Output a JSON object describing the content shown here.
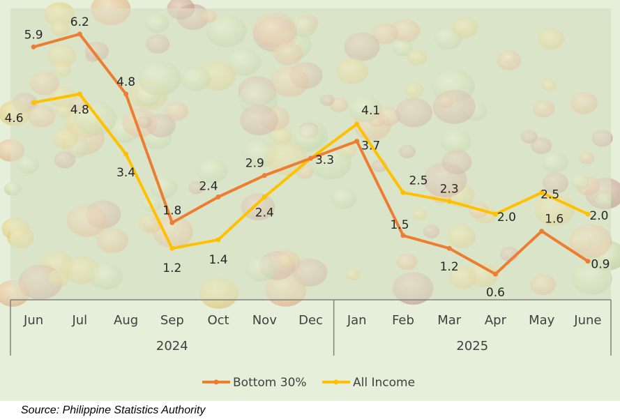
{
  "chart_data": {
    "type": "line",
    "categories": [
      "Jun",
      "Jul",
      "Aug",
      "Sep",
      "Oct",
      "Nov",
      "Dec",
      "Jan",
      "Feb",
      "Mar",
      "Apr",
      "May",
      "June"
    ],
    "year_groups": [
      {
        "label": "2024",
        "span": 7
      },
      {
        "label": "2025",
        "span": 6
      }
    ],
    "series": [
      {
        "name": "Bottom 30%",
        "color": "#ed7d31",
        "values": [
          5.9,
          6.2,
          4.8,
          1.8,
          2.4,
          2.9,
          3.3,
          3.7,
          1.5,
          1.2,
          0.6,
          1.6,
          0.9
        ],
        "labels": [
          "5.9",
          "6.2",
          "4.8",
          "1.8",
          "2.4",
          "2.9",
          "3.3",
          "3.7",
          "1.5",
          "1.2",
          "0.6",
          "1.6",
          "0.9"
        ]
      },
      {
        "name": "All Income",
        "color": "#ffc000",
        "values": [
          4.6,
          4.8,
          3.4,
          1.2,
          1.4,
          2.4,
          3.3,
          4.1,
          2.5,
          2.3,
          2.0,
          2.5,
          2.0
        ],
        "labels": [
          "4.6",
          "4.8",
          "3.4",
          "1.2",
          "1.4",
          "2.4",
          "",
          "4.1",
          "2.5",
          "2.3",
          "2.0",
          "2.5",
          "2.0"
        ]
      }
    ],
    "ylim": [
      0,
      6.8
    ],
    "grid": false,
    "legend_position": "bottom",
    "background_image": "fruit-and-vegetable-market-photo"
  },
  "source": "Source: Philippine Statistics Authority"
}
